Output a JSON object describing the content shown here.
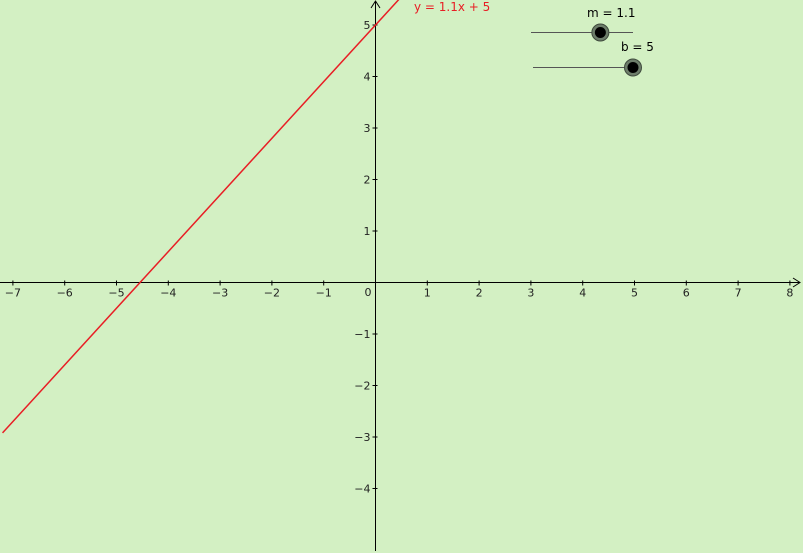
{
  "background_color": "#d3f0c3",
  "line_color": "#e81e25",
  "axis_color": "#000000",
  "chart_data": {
    "type": "line",
    "title": "",
    "xlabel": "",
    "ylabel": "",
    "xlim": [
      -7.2,
      8.2
    ],
    "ylim": [
      -5.2,
      5.45
    ],
    "grid": false,
    "x_ticks": [
      {
        "value": -7,
        "label": "−7"
      },
      {
        "value": -6,
        "label": "−6"
      },
      {
        "value": -5,
        "label": "−5"
      },
      {
        "value": -4,
        "label": "−4"
      },
      {
        "value": -3,
        "label": "−3"
      },
      {
        "value": -2,
        "label": "−2"
      },
      {
        "value": -1,
        "label": "−1"
      },
      {
        "value": 0,
        "label": "0"
      },
      {
        "value": 1,
        "label": "1"
      },
      {
        "value": 2,
        "label": "2"
      },
      {
        "value": 3,
        "label": "3"
      },
      {
        "value": 4,
        "label": "4"
      },
      {
        "value": 5,
        "label": "5"
      },
      {
        "value": 6,
        "label": "6"
      },
      {
        "value": 7,
        "label": "7"
      },
      {
        "value": 8,
        "label": "8"
      }
    ],
    "y_ticks": [
      {
        "value": 5,
        "label": "5"
      },
      {
        "value": 4,
        "label": "4"
      },
      {
        "value": 3,
        "label": "3"
      },
      {
        "value": 2,
        "label": "2"
      },
      {
        "value": 1,
        "label": "1"
      },
      {
        "value": -1,
        "label": "−1"
      },
      {
        "value": -2,
        "label": "−2"
      },
      {
        "value": -3,
        "label": "−3"
      },
      {
        "value": -4,
        "label": "−4"
      }
    ],
    "series": [
      {
        "slope": 1.1,
        "intercept": 5,
        "x_range": [
          -7.2,
          0.45
        ],
        "label": "y = 1.1x + 5"
      }
    ],
    "sliders": [
      {
        "label": "m = 1.1",
        "value": 1.1,
        "fraction": 0.68
      },
      {
        "label": "b = 5",
        "value": 5,
        "fraction": 0.99
      }
    ]
  }
}
